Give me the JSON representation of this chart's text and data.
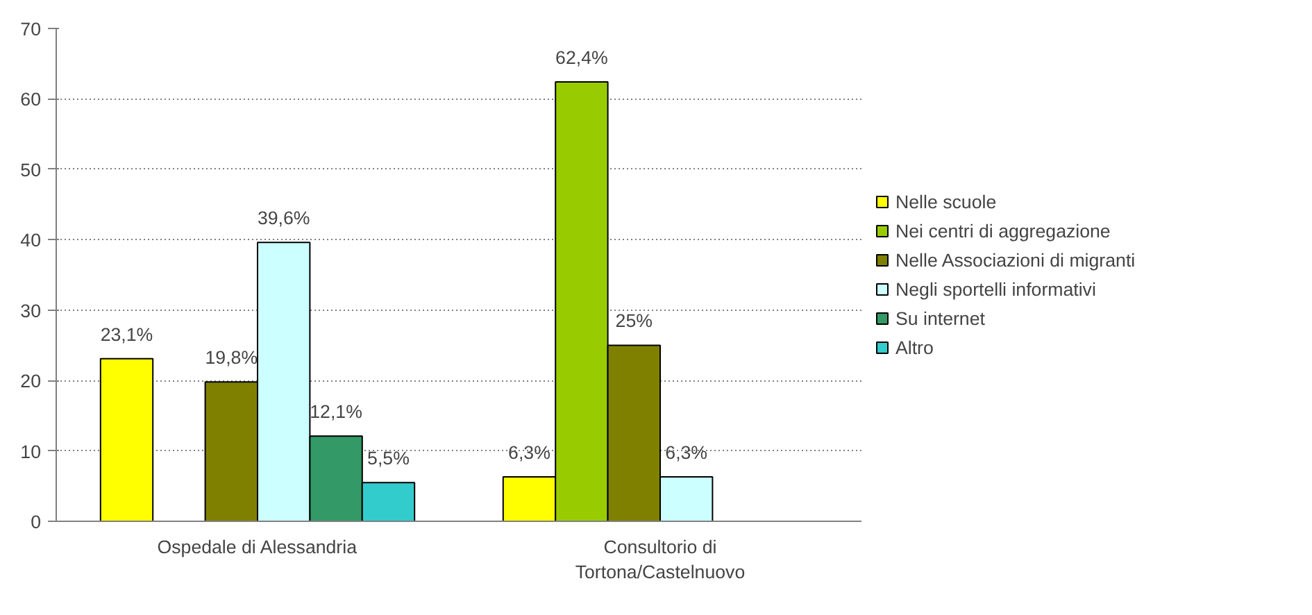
{
  "chart_data": {
    "type": "bar",
    "categories": [
      "Ospedale di Alessandria",
      "Consultorio di\nTortona/Castelnuovo"
    ],
    "series": [
      {
        "name": "Nelle scuole",
        "color": "#ffff00",
        "values": [
          23.1,
          6.3
        ],
        "value_labels": [
          "23,1%",
          "6,3%"
        ]
      },
      {
        "name": "Nei centri di aggregazione",
        "color": "#99cc00",
        "values": [
          null,
          62.4
        ],
        "value_labels": [
          null,
          "62,4%"
        ]
      },
      {
        "name": "Nelle Associazioni di migranti",
        "color": "#808000",
        "values": [
          19.8,
          25
        ],
        "value_labels": [
          "19,8%",
          "25%"
        ]
      },
      {
        "name": "Negli sportelli informativi",
        "color": "#ccffff",
        "values": [
          39.6,
          6.3
        ],
        "value_labels": [
          "39,6%",
          "6,3%"
        ]
      },
      {
        "name": "Su internet",
        "color": "#339966",
        "values": [
          12.1,
          null
        ],
        "value_labels": [
          "12,1%",
          null
        ]
      },
      {
        "name": "Altro",
        "color": "#33cccc",
        "values": [
          5.5,
          null
        ],
        "value_labels": [
          "5,5%",
          null
        ]
      }
    ],
    "ylim": [
      0,
      70
    ],
    "yticks": [
      0,
      10,
      20,
      30,
      40,
      50,
      60,
      70
    ],
    "grid": "y",
    "legend": "right"
  }
}
